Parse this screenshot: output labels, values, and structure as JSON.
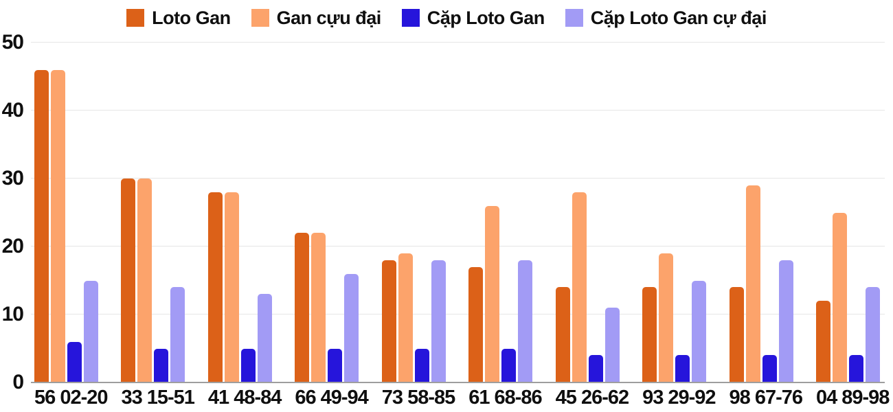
{
  "chart_data": {
    "type": "bar",
    "title": "",
    "xlabel": "",
    "ylabel": "",
    "ylim": [
      0,
      50
    ],
    "yticks": [
      0,
      10,
      20,
      30,
      40,
      50
    ],
    "grid": true,
    "legend_position": "top",
    "categories": [
      "56 02-20",
      "33 15-51",
      "41 48-84",
      "66 49-94",
      "73 58-85",
      "61 68-86",
      "45 26-62",
      "93 29-92",
      "98 67-76",
      "04 89-98"
    ],
    "series": [
      {
        "name": "Loto Gan",
        "color": "#DC6118",
        "values": [
          46,
          30,
          28,
          22,
          18,
          17,
          14,
          14,
          14,
          12
        ]
      },
      {
        "name": "Gan cựu đại",
        "color": "#FCA36B",
        "values": [
          46,
          30,
          28,
          22,
          19,
          26,
          28,
          19,
          29,
          25
        ]
      },
      {
        "name": "Cặp Loto Gan",
        "color": "#2615DB",
        "values": [
          6,
          5,
          5,
          5,
          5,
          5,
          4,
          4,
          4,
          4
        ]
      },
      {
        "name": "Cặp Loto Gan cự đại",
        "color": "#A29BF5",
        "values": [
          15,
          14,
          13,
          16,
          18,
          18,
          11,
          15,
          18,
          14
        ]
      }
    ]
  },
  "colors": {
    "gridline": "#e6e6e6",
    "baseline": "#9e9e9e",
    "text": "#0f0f0f",
    "background": "#ffffff"
  }
}
